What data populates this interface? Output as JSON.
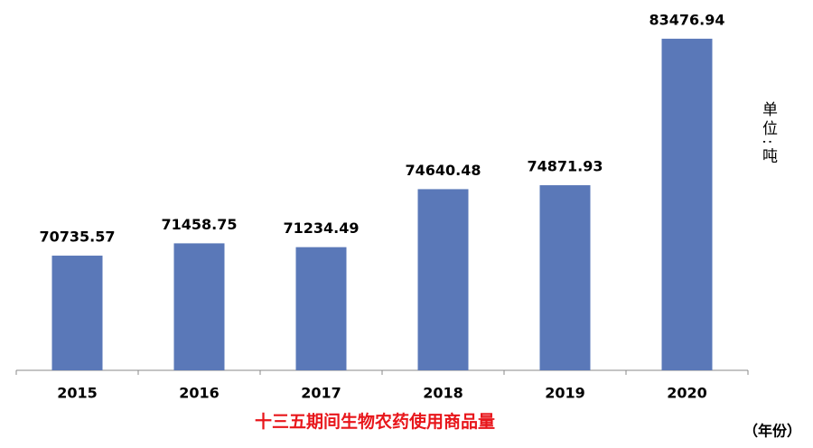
{
  "chart_data": {
    "type": "bar",
    "subtitle": "十三五期间生物农药使用商品量",
    "x_label": "（年份）",
    "unit_label": "单位:吨",
    "categories": [
      "2015",
      "2016",
      "2017",
      "2018",
      "2019",
      "2020"
    ],
    "values": [
      70735.57,
      71458.75,
      71234.49,
      74640.48,
      74871.93,
      83476.94
    ],
    "color": "#5a78b8",
    "ylim": [
      64000,
      84000
    ]
  }
}
